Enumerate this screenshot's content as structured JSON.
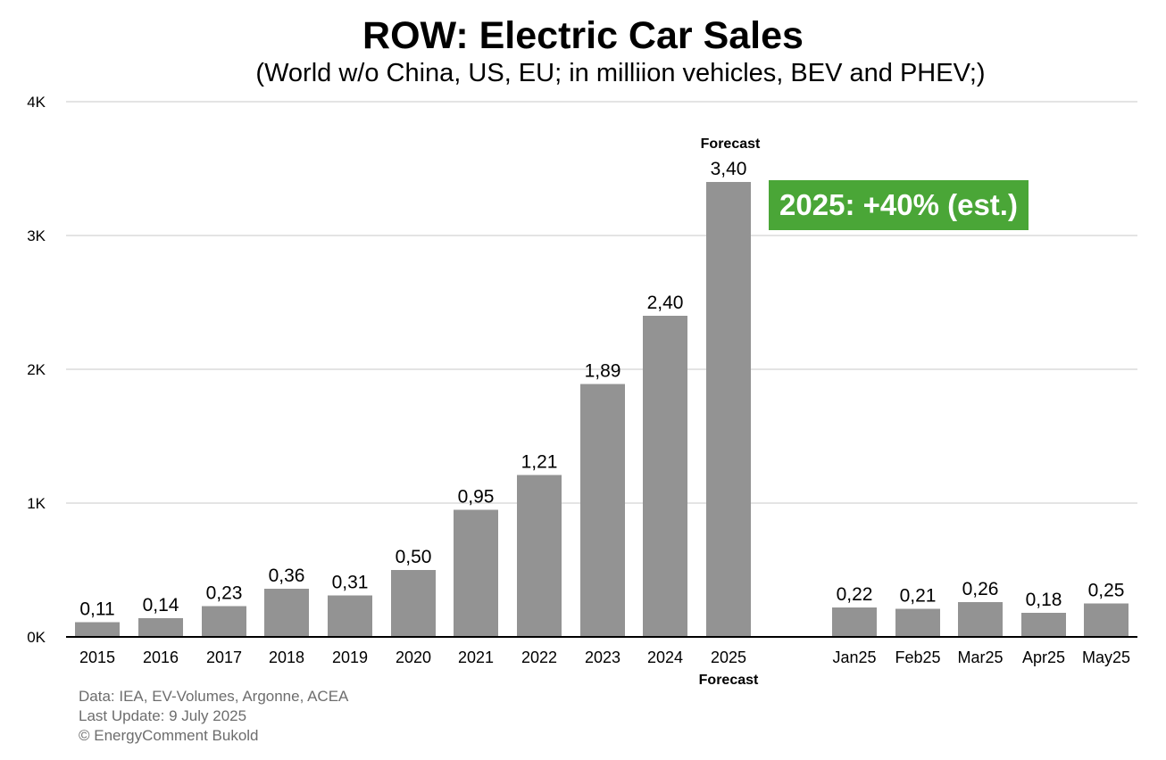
{
  "title": "ROW: Electric Car Sales",
  "subtitle": "(World w/o China, US, EU; in milliion vehicles, BEV and PHEV;)",
  "badge": "2025: +40% (est.)",
  "forecast_top_label": "Forecast",
  "forecast_axis_label": "Forecast",
  "footer": {
    "line1": "Data: IEA, EV-Volumes, Argonne, ACEA",
    "line2": "Last Update: 9 July 2025",
    "line3": "© EnergyComment Bukold"
  },
  "colors": {
    "bar": "#939393",
    "badge": "#4aa637",
    "grid": "#c8c8c8"
  },
  "chart_data": {
    "type": "bar",
    "title": "ROW: Electric Car Sales",
    "subtitle": "(World w/o China, US, EU; in milliion vehicles, BEV and PHEV;)",
    "categories": [
      "2015",
      "2016",
      "2017",
      "2018",
      "2019",
      "2020",
      "2021",
      "2022",
      "2023",
      "2024",
      "2025",
      "Jan25",
      "Feb25",
      "Mar25",
      "Apr25",
      "May25"
    ],
    "values": [
      0.11,
      0.14,
      0.23,
      0.36,
      0.31,
      0.5,
      0.95,
      1.21,
      1.89,
      2.4,
      3.4,
      0.22,
      0.21,
      0.26,
      0.18,
      0.25
    ],
    "data_labels": [
      "0,11",
      "0,14",
      "0,23",
      "0,36",
      "0,31",
      "0,50",
      "0,95",
      "1,21",
      "1,89",
      "2,40",
      "3,40",
      "0,22",
      "0,21",
      "0,26",
      "0,18",
      "0,25"
    ],
    "y_ticks": [
      "0K",
      "1K",
      "2K",
      "3K",
      "4K"
    ],
    "y_tick_values": [
      0,
      1,
      2,
      3,
      4
    ],
    "ylim": [
      0,
      4
    ],
    "xlabel": "",
    "ylabel": "",
    "grid": true,
    "forecast_category": "2025"
  }
}
